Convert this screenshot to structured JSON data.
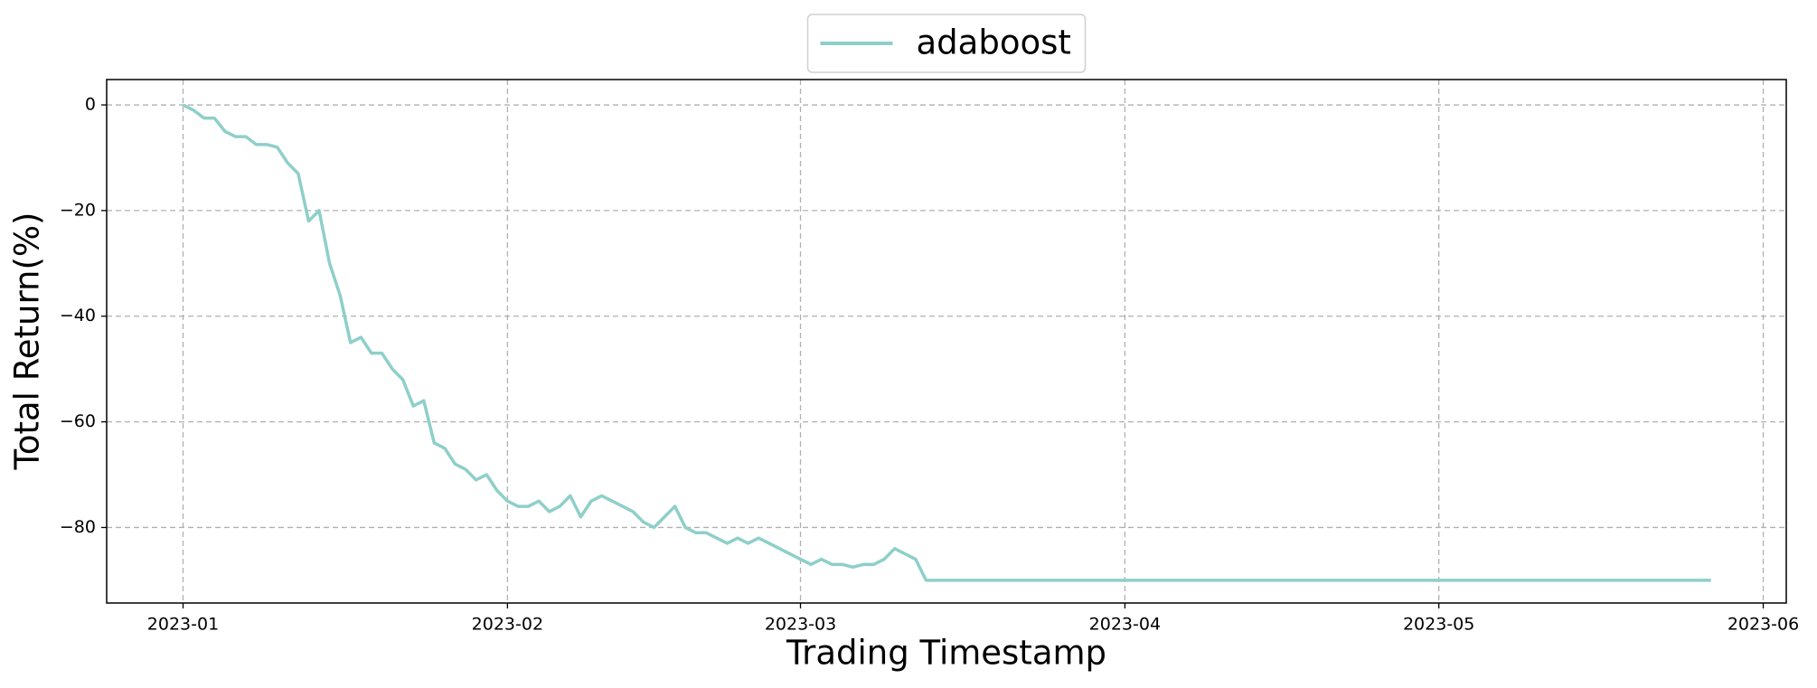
{
  "chart_data": {
    "type": "line",
    "xlabel": "Trading Timestamp",
    "ylabel": "Total Return(%)",
    "x": [
      0,
      1,
      2,
      3,
      4,
      5,
      6,
      7,
      8,
      9,
      10,
      11,
      12,
      13,
      14,
      15,
      16,
      17,
      18,
      19,
      20,
      21,
      22,
      23,
      24,
      25,
      26,
      27,
      28,
      29,
      30,
      31,
      32,
      33,
      34,
      35,
      36,
      37,
      38,
      39,
      40,
      41,
      42,
      43,
      44,
      45,
      46,
      47,
      48,
      49,
      50,
      51,
      52,
      53,
      54,
      55,
      56,
      57,
      58,
      59,
      60,
      61,
      62,
      63,
      64,
      65,
      66,
      67,
      68,
      69,
      70,
      71,
      146
    ],
    "series": [
      {
        "name": "adaboost",
        "color": "#8ecfc9",
        "values": [
          0,
          -1,
          -2.5,
          -2.5,
          -5,
          -6,
          -6,
          -7.5,
          -7.5,
          -8,
          -11,
          -13,
          -22,
          -20,
          -30,
          -36,
          -45,
          -44,
          -47,
          -47,
          -50,
          -52,
          -57,
          -56,
          -64,
          -65,
          -68,
          -69,
          -71,
          -70,
          -73,
          -75,
          -76,
          -76,
          -75,
          -77,
          -76,
          -74,
          -78,
          -75,
          -74,
          -75,
          -76,
          -77,
          -79,
          -80,
          -78,
          -76,
          -80,
          -81,
          -81,
          -82,
          -83,
          -82,
          -83,
          -82,
          -83,
          -84,
          -85,
          -86,
          -87,
          -86,
          -87,
          -87,
          -87.5,
          -87,
          -87,
          -86,
          -84,
          -85,
          -86,
          -90,
          -90
        ]
      }
    ],
    "xlim": [
      -7.3,
      153.2
    ],
    "xticks": [
      {
        "value": 0,
        "label": "2023-01"
      },
      {
        "value": 31,
        "label": "2023-02"
      },
      {
        "value": 59,
        "label": "2023-03"
      },
      {
        "value": 90,
        "label": "2023-04"
      },
      {
        "value": 120,
        "label": "2023-05"
      },
      {
        "value": 151,
        "label": "2023-06"
      }
    ],
    "ylim": [
      -94.3,
      4.8
    ],
    "yticks": [
      {
        "value": -80,
        "label": "−80"
      },
      {
        "value": -60,
        "label": "−60"
      },
      {
        "value": -40,
        "label": "−40"
      },
      {
        "value": -20,
        "label": "−20"
      },
      0
    ],
    "grid": true,
    "legend": "top-center"
  }
}
